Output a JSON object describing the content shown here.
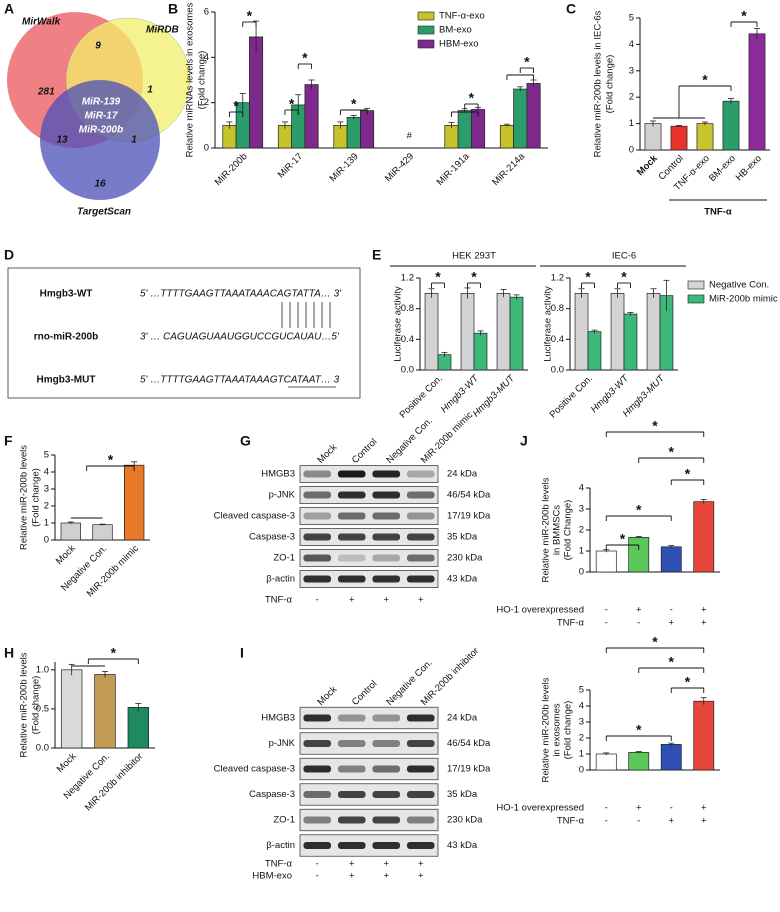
{
  "panel_letters": [
    "A",
    "B",
    "C",
    "D",
    "E",
    "F",
    "G",
    "H",
    "I",
    "J"
  ],
  "significance_mark": "*",
  "venn": {
    "sets": [
      "MirWalk",
      "MiRDB",
      "TargetScan"
    ],
    "regions": [
      "281",
      "9",
      "1",
      "13",
      "1",
      "16"
    ],
    "shared": [
      "MiR-139",
      "MiR-17",
      "MiR-200b"
    ]
  },
  "sequence": {
    "rows": [
      {
        "name": "Hmgb3-WT",
        "seq": "5' …TTTTGAAGTTAAATAAACAGTATTA… 3'"
      },
      {
        "name": "rno-miR-200b",
        "seq": "3' … CAGUAGUAAUGGUCCGUCAUAU…5'"
      },
      {
        "name": "Hmgb3-MUT",
        "seq": "5' …TTTTGAAGTTAAATAAAGTCATAAT… 3"
      }
    ]
  },
  "blots": [
    {
      "lanes": [
        "Mock",
        "Control",
        "Negative Con.",
        "MiR-200b mimic"
      ],
      "rows": [
        {
          "protein": "HMGB3",
          "size": "24 kDa"
        },
        {
          "protein": "p-JNK",
          "size": "46/54 kDa"
        },
        {
          "protein": "Cleaved caspase-3",
          "size": "17/19 kDa"
        },
        {
          "protein": "Caspase-3",
          "size": "35 kDa"
        },
        {
          "protein": "ZO-1",
          "size": "230 kDa"
        },
        {
          "protein": "β-actin",
          "size": "43 kDa"
        }
      ],
      "conditions": [
        {
          "name": "TNF-α",
          "values": [
            "-",
            "+",
            "+",
            "+"
          ]
        }
      ]
    },
    {
      "lanes": [
        "Mock",
        "Control",
        "Negative Con.",
        "MiR-200b inhibitor"
      ],
      "rows": [
        {
          "protein": "HMGB3",
          "size": "24 kDa"
        },
        {
          "protein": "p-JNK",
          "size": "46/54 kDa"
        },
        {
          "protein": "Cleaved caspase-3",
          "size": "17/19 kDa"
        },
        {
          "protein": "Caspase-3",
          "size": "35 kDa"
        },
        {
          "protein": "ZO-1",
          "size": "230 kDa"
        },
        {
          "protein": "β-actin",
          "size": "43 kDa"
        }
      ],
      "conditions": [
        {
          "name": "TNF-α",
          "values": [
            "-",
            "+",
            "+",
            "+"
          ]
        },
        {
          "name": "HBM-exo",
          "values": [
            "-",
            "+",
            "+",
            "+"
          ]
        }
      ]
    }
  ],
  "chart_data": [
    {
      "type": "bar",
      "ylabel": [
        "Relative miRNAs levels in exosomes",
        "(Fold change)"
      ],
      "categories": [
        "MiR-200b",
        "MiR-17",
        "MiR-139",
        "MiR-429",
        "MiR-191a",
        "MiR-214a"
      ],
      "series": [
        {
          "name": "TNF-α-exo",
          "color": "#c5c22a",
          "values": [
            1.0,
            1.0,
            1.0,
            null,
            1.0,
            1.0
          ],
          "errors": [
            0.15,
            0.15,
            0.15,
            null,
            0.12,
            0.05
          ]
        },
        {
          "name": "BM-exo",
          "color": "#2a9d6a",
          "values": [
            2.0,
            1.9,
            1.35,
            null,
            1.65,
            2.6
          ],
          "errors": [
            0.4,
            0.45,
            0.08,
            null,
            0.08,
            0.1
          ]
        },
        {
          "name": "HBM-exo",
          "color": "#7d2a8c",
          "values": [
            4.9,
            2.8,
            1.65,
            null,
            1.7,
            2.85
          ],
          "errors": [
            0.7,
            0.2,
            0.1,
            null,
            0.08,
            0.15
          ]
        }
      ],
      "missing_label": "#",
      "ylim": [
        0,
        6
      ],
      "yticks": [
        0,
        2,
        4,
        6
      ],
      "legend": "upper right"
    },
    {
      "type": "bar",
      "ylabel": [
        "Relative miR-200b levels in IEC-6s",
        "(Fold change)"
      ],
      "categories": [
        "Mock",
        "Control",
        "TNF-α-exo",
        "BM-exo",
        "HB-exo"
      ],
      "values": [
        1.0,
        0.9,
        1.0,
        1.85,
        4.4
      ],
      "errors": [
        0.1,
        0.03,
        0.06,
        0.1,
        0.2
      ],
      "colors": [
        "#d0d0d0",
        "#e8332a",
        "#c8c52e",
        "#2a9d6a",
        "#8e2a9a"
      ],
      "group_label": "TNF-α",
      "ylim": [
        0,
        5
      ],
      "yticks": [
        0,
        1,
        2,
        3,
        4,
        5
      ]
    },
    {
      "type": "bar",
      "title": "HEK 293T",
      "ylabel": [
        "Luciferase activity"
      ],
      "categories": [
        "Positive Con.",
        "Hmgb3-WT",
        "Hmgb3-MUT"
      ],
      "series": [
        {
          "color": "#d3d3d3",
          "values": [
            1.0,
            1.0,
            1.0
          ],
          "errors": [
            0.06,
            0.07,
            0.05
          ]
        },
        {
          "color": "#3cb878",
          "values": [
            0.2,
            0.48,
            0.95
          ],
          "errors": [
            0.03,
            0.03,
            0.03
          ]
        }
      ],
      "ylim": [
        0,
        1.2
      ],
      "yticks": [
        {
          "value": 0,
          "label": "0.0"
        },
        0.4,
        0.8,
        1.2
      ]
    },
    {
      "type": "bar",
      "title": "IEC-6",
      "ylabel": [
        "Luciferase activity"
      ],
      "categories": [
        "Positive Con.",
        "Hmgb3-WT",
        "Hmgb3-MUT"
      ],
      "series": [
        {
          "name": "Negative Con.",
          "color": "#d3d3d3",
          "values": [
            1.0,
            1.0,
            1.0
          ],
          "errors": [
            0.06,
            0.06,
            0.06
          ]
        },
        {
          "name": "MiR-200b mimic",
          "color": "#3cb878",
          "values": [
            0.5,
            0.73,
            0.97
          ],
          "errors": [
            0.02,
            0.02,
            0.2
          ]
        }
      ],
      "ylim": [
        0,
        1.2
      ],
      "yticks": [
        {
          "value": 0,
          "label": "0.0"
        },
        0.4,
        0.8,
        1.2
      ],
      "legend": "upper right"
    },
    {
      "type": "bar",
      "ylabel": [
        "Relative miR-200b levels",
        "(Fold change)"
      ],
      "categories": [
        "Mock",
        "Negative Con.",
        "MiR-200b mimic"
      ],
      "values": [
        1.0,
        0.9,
        4.4
      ],
      "errors": [
        0.06,
        0.03,
        0.2
      ],
      "colors": [
        "#d0d0d0",
        "#d0d0d0",
        "#e8792a"
      ],
      "ylim": [
        0,
        5
      ],
      "yticks": [
        0,
        1,
        2,
        3,
        4,
        5
      ]
    },
    {
      "type": "bar",
      "ylabel": [
        "Relative miR-200b levels",
        "(Fold change)"
      ],
      "categories": [
        "Mock",
        "Negative Con.",
        "MiR-200b inhibitor"
      ],
      "values": [
        1.0,
        0.94,
        0.52
      ],
      "errors": [
        0.07,
        0.04,
        0.05
      ],
      "colors": [
        "#d9d9d9",
        "#c49a55",
        "#1f8a5f"
      ],
      "ylim": [
        0,
        1.1
      ],
      "yticks": [
        {
          "value": 0,
          "label": "0.0"
        },
        0.5,
        {
          "value": 1,
          "label": "1.0"
        }
      ]
    },
    {
      "type": "bar",
      "ylabel": [
        "Relative miR-200b levels",
        "in BMMSCs",
        "(Fold Change)"
      ],
      "values": [
        1.0,
        1.65,
        1.2,
        3.35
      ],
      "errors": [
        0.06,
        0.04,
        0.06,
        0.1
      ],
      "colors": [
        "#ffffff",
        "#5cc85c",
        "#2f4fb5",
        "#e8453c"
      ],
      "conditions": [
        {
          "name": "HO-1 overexpressed",
          "values": [
            "-",
            "+",
            "-",
            "+"
          ]
        },
        {
          "name": "TNF-α",
          "values": [
            "-",
            "-",
            "+",
            "+"
          ]
        }
      ],
      "ylim": [
        0,
        4
      ],
      "yticks": [
        0,
        1,
        2,
        3,
        4
      ]
    },
    {
      "type": "bar",
      "ylabel": [
        "Relative miR-200b levels",
        "in exosomes",
        "(Fold change)"
      ],
      "values": [
        1.0,
        1.1,
        1.6,
        4.3
      ],
      "errors": [
        0.07,
        0.05,
        0.08,
        0.22
      ],
      "colors": [
        "#ffffff",
        "#5cc85c",
        "#2f4fb5",
        "#e8453c"
      ],
      "conditions": [
        {
          "name": "HO-1 overexpressed",
          "values": [
            "-",
            "+",
            "-",
            "+"
          ]
        },
        {
          "name": "TNF-α",
          "values": [
            "-",
            "-",
            "+",
            "+"
          ]
        }
      ],
      "ylim": [
        0,
        5
      ],
      "yticks": [
        0,
        1,
        2,
        3,
        4,
        5
      ]
    }
  ]
}
